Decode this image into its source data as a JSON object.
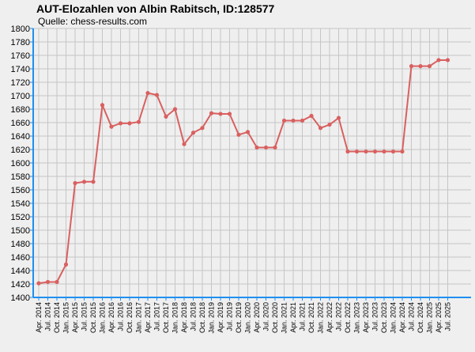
{
  "chart_data": {
    "type": "line",
    "title": "AUT-Elozahlen von Albin Rabitsch, ID:128577",
    "subtitle": "Quelle: chess-results.com",
    "xlabel": "",
    "ylabel": "",
    "ylim": [
      1400,
      1800
    ],
    "ytick_step": 20,
    "grid": true,
    "line_color": "#d96060",
    "axis_color": "#1f8ff0",
    "categories": [
      "Apr. 2014",
      "Jul. 2014",
      "Oct. 2014",
      "Jan. 2015",
      "Apr. 2015",
      "Jul. 2015",
      "Oct. 2015",
      "Jan. 2016",
      "Apr. 2016",
      "Jul. 2016",
      "Oct. 2016",
      "Jan. 2017",
      "Apr. 2017",
      "Jul. 2017",
      "Oct. 2017",
      "Jan. 2018",
      "Apr. 2018",
      "Jul. 2018",
      "Oct. 2018",
      "Jan. 2019",
      "Apr. 2019",
      "Jul. 2019",
      "Oct. 2019",
      "Jan. 2020",
      "Apr. 2020",
      "Jul. 2020",
      "Oct. 2020",
      "Jan. 2021",
      "Apr. 2021",
      "Jul. 2021",
      "Oct. 2021",
      "Jan. 2022",
      "Apr. 2022",
      "Jul. 2022",
      "Oct. 2022",
      "Jan. 2023",
      "Apr. 2023",
      "Jul. 2023",
      "Oct. 2023",
      "Jan. 2024",
      "Apr. 2024",
      "Jul. 2024",
      "Oct. 2024",
      "Jan. 2025",
      "Apr. 2025",
      "Jul. 2025"
    ],
    "values": [
      1421,
      1423,
      1423,
      1449,
      1570,
      1572,
      1572,
      1686,
      1654,
      1659,
      1659,
      1661,
      1704,
      1701,
      1669,
      1680,
      1628,
      1645,
      1652,
      1674,
      1673,
      1673,
      1642,
      1646,
      1623,
      1623,
      1623,
      1663,
      1663,
      1663,
      1670,
      1652,
      1657,
      1667,
      1617,
      1617,
      1617,
      1617,
      1617,
      1617,
      1617,
      1744,
      1744,
      1744,
      1753,
      1753
    ]
  }
}
